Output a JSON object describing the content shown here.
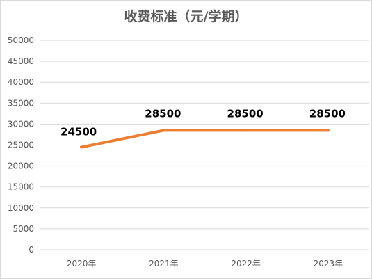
{
  "chart_data": {
    "type": "line",
    "title": "收费标准（元/学期）",
    "categories": [
      "2020年",
      "2021年",
      "2022年",
      "2023年"
    ],
    "series": [
      {
        "values": [
          24500,
          28500,
          28500,
          28500
        ]
      }
    ],
    "data_labels": [
      "24500",
      "28500",
      "28500",
      "28500"
    ],
    "yticks": [
      0,
      5000,
      10000,
      15000,
      20000,
      25000,
      30000,
      35000,
      40000,
      45000,
      50000
    ],
    "ylim": [
      0,
      50000
    ],
    "grid": true,
    "legend": "none",
    "xlabel": "",
    "ylabel": "",
    "colors": {
      "line": "#ED7D31",
      "grid": "#d9d9d9",
      "text": "#595959"
    }
  }
}
